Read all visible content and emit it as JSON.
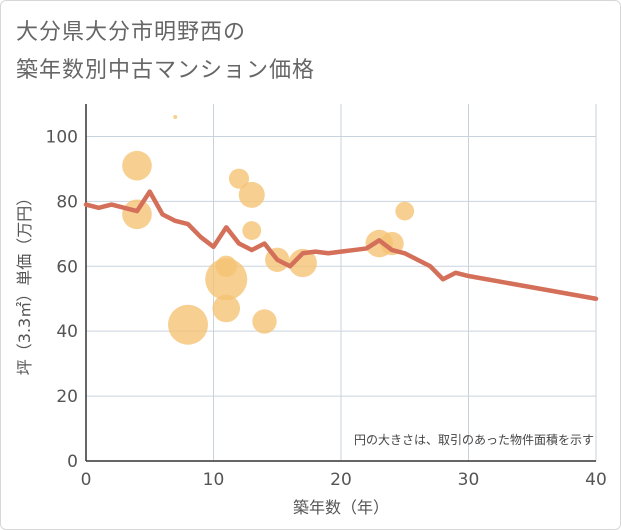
{
  "title_line1": "大分県大分市明野西の",
  "title_line2": "築年数別中古マンション価格",
  "chart_data": {
    "type": "scatter",
    "title": "大分県大分市明野西の築年数別中古マンション価格",
    "xlabel": "築年数（年）",
    "ylabel": "坪（3.3㎡）単価（万円）",
    "note": "円の大きさは、取引のあった物件面積を示す",
    "xlim": [
      0,
      40
    ],
    "ylim": [
      0,
      110
    ],
    "x_ticks": [
      0,
      10,
      20,
      30,
      40
    ],
    "y_ticks": [
      0,
      20,
      40,
      60,
      80,
      100
    ],
    "grid": true,
    "bubble_color": "#f5c372",
    "line_color": "#d4705a",
    "bubbles": [
      {
        "x": 4,
        "y": 91,
        "size": 3
      },
      {
        "x": 4,
        "y": 76,
        "size": 3
      },
      {
        "x": 7,
        "y": 106,
        "size": 0.3
      },
      {
        "x": 8,
        "y": 42,
        "size": 7
      },
      {
        "x": 11,
        "y": 56,
        "size": 8
      },
      {
        "x": 11,
        "y": 60,
        "size": 1
      },
      {
        "x": 11,
        "y": 47,
        "size": 2.4
      },
      {
        "x": 12,
        "y": 87,
        "size": 0.8
      },
      {
        "x": 13,
        "y": 82,
        "size": 2
      },
      {
        "x": 13,
        "y": 71,
        "size": 0.6
      },
      {
        "x": 14,
        "y": 43,
        "size": 1.6
      },
      {
        "x": 15,
        "y": 62,
        "size": 1.6
      },
      {
        "x": 17,
        "y": 61,
        "size": 2.6
      },
      {
        "x": 23,
        "y": 67,
        "size": 2.4
      },
      {
        "x": 24,
        "y": 67,
        "size": 1.4
      },
      {
        "x": 25,
        "y": 77,
        "size": 0.6
      }
    ],
    "trend": {
      "x": [
        0,
        1,
        2,
        3,
        4,
        5,
        6,
        7,
        8,
        9,
        10,
        11,
        12,
        13,
        14,
        15,
        16,
        17,
        18,
        19,
        20,
        21,
        22,
        23,
        24,
        25,
        26,
        27,
        28,
        29,
        30,
        40
      ],
      "y": [
        79,
        78,
        79,
        78,
        77,
        83,
        76,
        74,
        73,
        69,
        66,
        72,
        67,
        65,
        67,
        62,
        60,
        64,
        64.5,
        64,
        64.5,
        65,
        65.5,
        68,
        65,
        64,
        62,
        60,
        56,
        58,
        57,
        50
      ]
    }
  }
}
